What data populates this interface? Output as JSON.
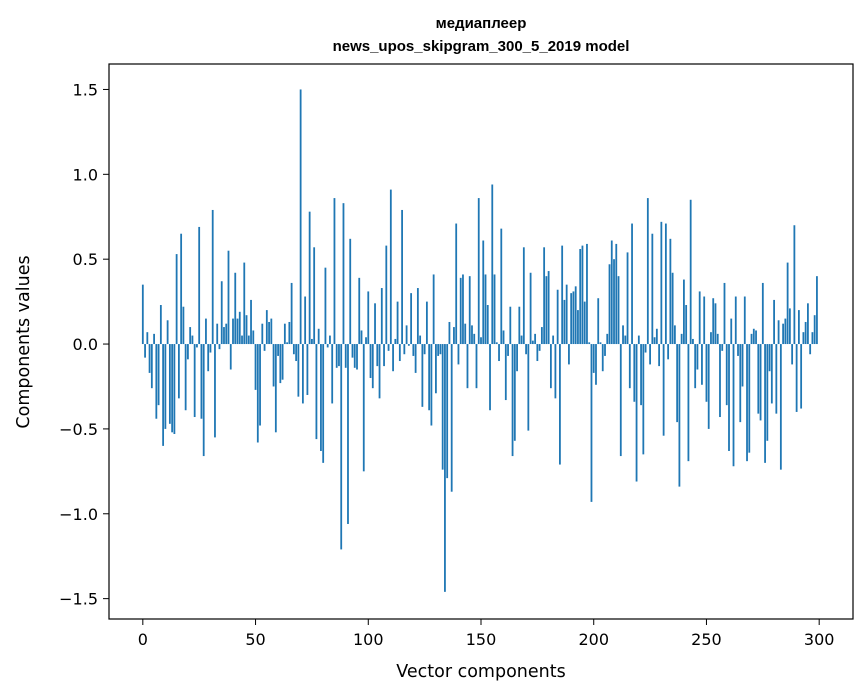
{
  "chart_data": {
    "type": "bar",
    "title": "медиаплеер",
    "subtitle": "news_upos_skipgram_300_5_2019 model",
    "xlabel": "Vector components",
    "ylabel": "Components values",
    "xlim": [
      -15,
      315
    ],
    "ylim": [
      -1.62,
      1.65
    ],
    "x_ticks": [
      0,
      50,
      100,
      150,
      200,
      250,
      300
    ],
    "x_tick_labels": [
      "0",
      "50",
      "100",
      "150",
      "200",
      "250",
      "300"
    ],
    "y_ticks": [
      -1.5,
      -1.0,
      -0.5,
      0.0,
      0.5,
      1.0,
      1.5
    ],
    "y_tick_labels": [
      "−1.5",
      "−1.0",
      "−0.5",
      "0.0",
      "0.5",
      "1.0",
      "1.5"
    ],
    "bar_color": "#1f77b4",
    "x": "0..299 (component index)",
    "values": [
      0.35,
      -0.08,
      0.07,
      -0.17,
      -0.26,
      0.06,
      -0.44,
      -0.36,
      0.23,
      -0.6,
      -0.5,
      0.14,
      -0.47,
      -0.52,
      -0.53,
      0.53,
      -0.32,
      0.65,
      0.22,
      -0.39,
      -0.09,
      0.1,
      0.05,
      -0.43,
      -0.02,
      0.69,
      -0.44,
      -0.66,
      0.15,
      -0.16,
      -0.05,
      0.79,
      -0.55,
      0.12,
      -0.03,
      0.37,
      0.1,
      0.12,
      0.55,
      -0.15,
      0.15,
      0.42,
      0.15,
      0.19,
      0.05,
      0.48,
      0.17,
      0.05,
      0.26,
      0.08,
      -0.27,
      -0.58,
      -0.48,
      0.12,
      -0.04,
      0.2,
      0.13,
      0.15,
      -0.25,
      -0.52,
      -0.07,
      -0.23,
      -0.21,
      0.12,
      0.01,
      0.13,
      0.36,
      -0.06,
      -0.1,
      -0.31,
      1.5,
      -0.35,
      0.28,
      -0.3,
      0.78,
      0.03,
      0.57,
      -0.56,
      0.09,
      -0.63,
      -0.7,
      0.45,
      -0.02,
      0.05,
      -0.35,
      0.86,
      -0.14,
      -0.13,
      -1.21,
      0.83,
      -0.14,
      -1.06,
      0.62,
      -0.08,
      -0.14,
      -0.15,
      0.39,
      0.08,
      -0.75,
      0.04,
      0.31,
      -0.2,
      -0.26,
      0.24,
      -0.13,
      -0.32,
      0.33,
      -0.13,
      0.58,
      -0.04,
      0.91,
      -0.16,
      0.03,
      0.25,
      -0.1,
      0.79,
      -0.06,
      0.11,
      -0.01,
      0.3,
      -0.07,
      -0.17,
      0.33,
      0.05,
      -0.37,
      -0.06,
      0.25,
      -0.39,
      -0.48,
      0.41,
      -0.29,
      -0.07,
      -0.06,
      -0.74,
      -1.46,
      -0.79,
      0.13,
      -0.87,
      0.1,
      0.71,
      -0.12,
      0.39,
      0.41,
      0.12,
      -0.26,
      0.4,
      0.11,
      0.06,
      -0.26,
      0.86,
      0.04,
      0.61,
      0.41,
      0.23,
      -0.39,
      0.94,
      0.41,
      0.01,
      -0.1,
      0.68,
      0.08,
      -0.33,
      -0.07,
      0.22,
      -0.66,
      -0.57,
      -0.16,
      0.22,
      0.05,
      0.57,
      -0.06,
      -0.51,
      0.42,
      0.02,
      0.06,
      -0.1,
      -0.04,
      0.1,
      0.57,
      0.4,
      0.43,
      -0.26,
      0.05,
      -0.32,
      0.32,
      -0.71,
      0.58,
      0.26,
      0.35,
      -0.12,
      0.3,
      0.31,
      0.34,
      0.2,
      0.56,
      0.58,
      0.25,
      0.59,
      0.01,
      -0.93,
      -0.17,
      -0.24,
      0.27,
      0.01,
      -0.16,
      -0.07,
      0.06,
      0.47,
      0.61,
      0.5,
      0.59,
      0.4,
      -0.66,
      0.11,
      0.05,
      0.54,
      -0.26,
      0.71,
      -0.34,
      -0.81,
      0.05,
      -0.36,
      -0.65,
      -0.05,
      0.86,
      -0.12,
      0.65,
      0.04,
      0.09,
      -0.13,
      0.72,
      -0.54,
      0.71,
      -0.09,
      0.62,
      0.42,
      0.11,
      -0.46,
      -0.84,
      0.06,
      0.38,
      0.23,
      -0.69,
      0.85,
      0.03,
      -0.26,
      -0.15,
      0.31,
      -0.24,
      0.28,
      -0.34,
      -0.5,
      0.07,
      0.27,
      0.24,
      0.06,
      -0.43,
      -0.04,
      0.36,
      -0.36,
      -0.63,
      0.15,
      -0.72,
      0.28,
      -0.07,
      -0.46,
      -0.25,
      0.28,
      -0.69,
      -0.64,
      0.06,
      0.09,
      0.08,
      -0.41,
      -0.45,
      0.36,
      -0.7,
      -0.57,
      -0.16,
      -0.35,
      0.26,
      -0.41,
      0.14,
      -0.74,
      0.12,
      0.15,
      0.48,
      0.21,
      -0.12,
      0.7,
      -0.4,
      0.2,
      -0.38,
      0.07,
      0.13,
      0.24,
      -0.06,
      0.07,
      0.17,
      0.4
    ]
  }
}
